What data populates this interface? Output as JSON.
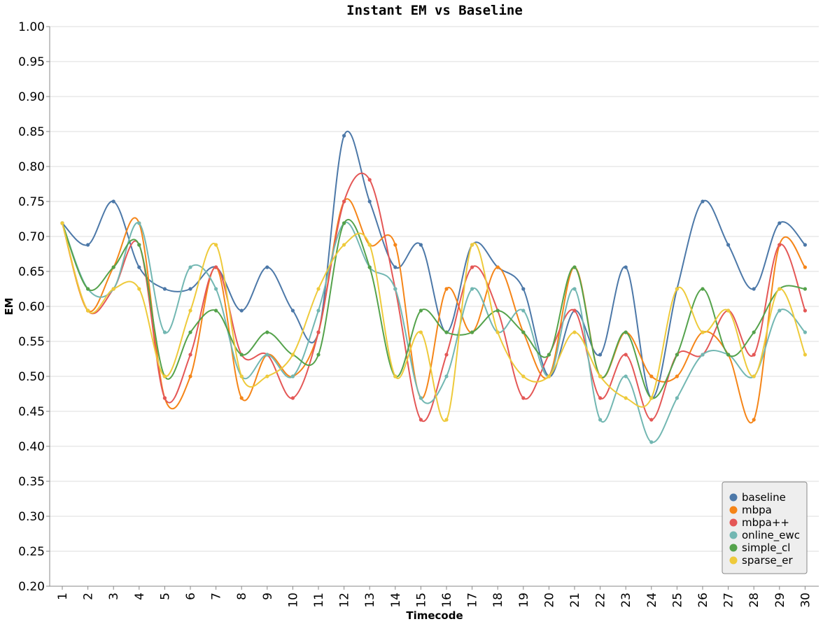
{
  "chart_data": {
    "type": "line",
    "title": "Instant EM vs Baseline",
    "xlabel": "Timecode",
    "ylabel": "EM",
    "ylim": [
      0.2,
      1.0
    ],
    "yticks": [
      "0.20",
      "0.25",
      "0.30",
      "0.35",
      "0.40",
      "0.45",
      "0.50",
      "0.55",
      "0.60",
      "0.65",
      "0.70",
      "0.75",
      "0.80",
      "0.85",
      "0.90",
      "0.95",
      "1.00"
    ],
    "x": [
      1,
      2,
      3,
      4,
      5,
      6,
      7,
      8,
      9,
      10,
      11,
      12,
      13,
      14,
      15,
      16,
      17,
      18,
      19,
      20,
      21,
      22,
      23,
      24,
      25,
      26,
      27,
      28,
      29,
      30
    ],
    "grid": true,
    "legend_position": "bottom-right",
    "series": [
      {
        "name": "baseline",
        "color": "#4c78a8",
        "values": [
          0.719,
          0.688,
          0.75,
          0.656,
          0.625,
          0.625,
          0.656,
          0.594,
          0.656,
          0.594,
          0.563,
          0.844,
          0.75,
          0.656,
          0.688,
          0.563,
          0.688,
          0.656,
          0.625,
          0.5,
          0.594,
          0.531,
          0.656,
          0.469,
          0.625,
          0.75,
          0.688,
          0.625,
          0.719,
          0.688
        ]
      },
      {
        "name": "mbpa",
        "color": "#f58518",
        "values": [
          0.719,
          0.594,
          0.656,
          0.719,
          0.469,
          0.5,
          0.656,
          0.469,
          0.531,
          0.5,
          0.563,
          0.75,
          0.688,
          0.688,
          0.469,
          0.625,
          0.563,
          0.656,
          0.563,
          0.5,
          0.656,
          0.5,
          0.563,
          0.5,
          0.5,
          0.563,
          0.531,
          0.438,
          0.688,
          0.656
        ]
      },
      {
        "name": "mbpa++",
        "color": "#e45756",
        "values": [
          0.719,
          0.594,
          0.625,
          0.688,
          0.469,
          0.531,
          0.656,
          0.531,
          0.531,
          0.469,
          0.563,
          0.75,
          0.781,
          0.625,
          0.438,
          0.531,
          0.656,
          0.594,
          0.469,
          0.531,
          0.594,
          0.469,
          0.531,
          0.438,
          0.531,
          0.531,
          0.594,
          0.531,
          0.688,
          0.594
        ]
      },
      {
        "name": "online_ewc",
        "color": "#72b7b2",
        "values": [
          0.719,
          0.625,
          0.625,
          0.719,
          0.563,
          0.656,
          0.625,
          0.5,
          0.531,
          0.5,
          0.594,
          0.719,
          0.656,
          0.625,
          0.469,
          0.5,
          0.625,
          0.563,
          0.594,
          0.5,
          0.625,
          0.438,
          0.5,
          0.406,
          0.469,
          0.531,
          0.531,
          0.5,
          0.594,
          0.563
        ]
      },
      {
        "name": "simple_cl",
        "color": "#54a24b",
        "values": [
          0.719,
          0.625,
          0.656,
          0.688,
          0.5,
          0.563,
          0.594,
          0.531,
          0.563,
          0.531,
          0.531,
          0.719,
          0.656,
          0.5,
          0.594,
          0.563,
          0.563,
          0.594,
          0.563,
          0.531,
          0.656,
          0.5,
          0.563,
          0.469,
          0.531,
          0.625,
          0.531,
          0.563,
          0.625,
          0.625
        ]
      },
      {
        "name": "sparse_er",
        "color": "#eeca3b",
        "values": [
          0.719,
          0.594,
          0.625,
          0.625,
          0.5,
          0.594,
          0.688,
          0.5,
          0.5,
          0.531,
          0.625,
          0.688,
          0.688,
          0.5,
          0.563,
          0.438,
          0.688,
          0.563,
          0.5,
          0.5,
          0.563,
          0.5,
          0.469,
          0.469,
          0.625,
          0.563,
          0.594,
          0.5,
          0.625,
          0.531
        ]
      }
    ]
  }
}
